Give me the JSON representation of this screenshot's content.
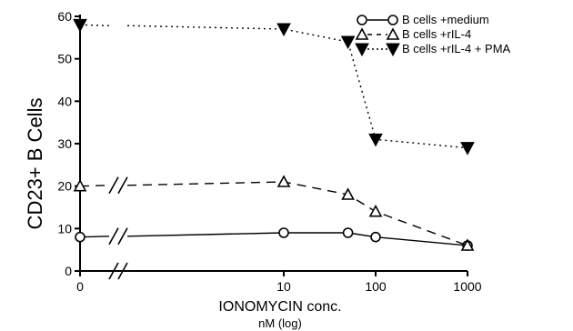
{
  "chart_data": {
    "type": "line",
    "ylabel": "CD23+ B Cells",
    "xlabel": "IONOMYCIN conc.",
    "xlabel_sub": "nM (log)",
    "x_tick_labels": [
      "0",
      "10",
      "100",
      "1000"
    ],
    "y_ticks": [
      0,
      10,
      20,
      30,
      40,
      50,
      60
    ],
    "ylim": [
      0,
      60
    ],
    "x": [
      0,
      10,
      50,
      100,
      1000
    ],
    "grid": false,
    "legend_position": "top-right",
    "series": [
      {
        "name": "B cells +medium",
        "legend_prefix": "O—O",
        "marker": "open-circle",
        "line": "solid",
        "values": [
          8,
          9,
          9,
          8,
          6
        ]
      },
      {
        "name": "B cells +rIL-4",
        "legend_prefix": "Δ- -Δ",
        "marker": "open-triangle",
        "line": "dashed",
        "values": [
          20,
          21,
          18,
          14,
          6
        ]
      },
      {
        "name": "B cells +rIL-4 + PMA",
        "legend_prefix": "▼······▼",
        "marker": "filled-triangle-down",
        "line": "dotted",
        "values": [
          58,
          57,
          54,
          31,
          29
        ]
      }
    ]
  }
}
